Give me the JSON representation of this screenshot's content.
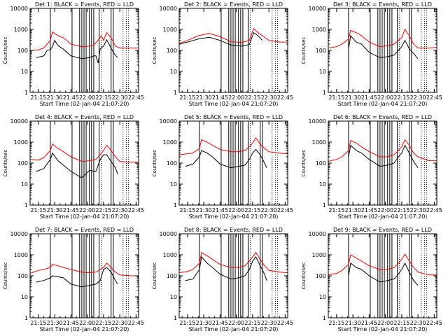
{
  "figure": {
    "xtick_labels": [
      "21:15",
      "21:30",
      "21:45",
      "22:00",
      "22:15",
      "22:30",
      "22:45"
    ],
    "ytick_labels": [
      "1",
      "10",
      "100",
      "1000",
      "10000"
    ],
    "xlabel": "Start Time (02-Jan-04 21:07:20)",
    "ylabel": "Counts/sec",
    "colors": {
      "events": "#000000",
      "lld": "#ff0000",
      "axes": "#000000"
    }
  },
  "chart_data": [
    {
      "type": "line",
      "title": "Det 1: BLACK = Events, RED = LLD",
      "xlabel": "Start Time (02-Jan-04 21:07:20)",
      "ylabel": "Counts/sec",
      "xlim": [
        "21:07:20",
        "22:47:20"
      ],
      "ylim": [
        1,
        10000
      ],
      "yscale": "log",
      "series": [
        {
          "name": "Events",
          "x": [
            "21:13",
            "21:20",
            "21:23",
            "21:26",
            "21:28",
            "21:30",
            "21:33",
            "21:38",
            "21:45",
            "21:55",
            "22:02",
            "22:06",
            "22:08",
            "22:10",
            "22:12",
            "22:15",
            "22:18",
            "22:22",
            "22:24",
            "22:26",
            "22:28"
          ],
          "y": [
            45,
            55,
            100,
            110,
            150,
            300,
            170,
            115,
            55,
            40,
            45,
            55,
            55,
            25,
            120,
            160,
            320,
            130,
            80,
            60,
            45
          ]
        },
        {
          "name": "LLD",
          "x": [
            "21:07",
            "21:15",
            "21:20",
            "21:26",
            "21:28",
            "21:33",
            "21:38",
            "21:45",
            "21:55",
            "22:02",
            "22:06",
            "22:10",
            "22:13",
            "22:15",
            "22:18",
            "22:22",
            "22:26",
            "22:30",
            "22:40",
            "22:47"
          ],
          "y": [
            100,
            105,
            130,
            300,
            750,
            500,
            400,
            200,
            150,
            160,
            180,
            300,
            500,
            300,
            700,
            400,
            160,
            130,
            130,
            130
          ]
        }
      ],
      "vlines_solid": [
        "21:26",
        "21:46",
        "21:53",
        "21:55",
        "21:57",
        "21:59",
        "22:02",
        "22:04",
        "22:06",
        "22:11",
        "22:22",
        "22:24"
      ],
      "vlines_dotted": [
        "22:13",
        "22:33",
        "22:36",
        "22:38"
      ]
    },
    {
      "type": "line",
      "title": "Det 2: BLACK = Events, RED = LLD",
      "xlabel": "Start Time (02-Jan-04 21:07:20)",
      "ylabel": "Counts/sec",
      "xlim": [
        "21:07:20",
        "22:47:20"
      ],
      "ylim": [
        1,
        10000
      ],
      "yscale": "log",
      "series": [
        {
          "name": "Events",
          "x": [
            "21:07",
            "21:15",
            "21:25",
            "21:35",
            "21:45",
            "21:55",
            "22:05",
            "22:12",
            "22:16",
            "22:20",
            "22:24"
          ],
          "y": [
            200,
            250,
            350,
            420,
            300,
            180,
            160,
            190,
            700,
            500,
            300
          ]
        },
        {
          "name": "LLD",
          "x": [
            "21:07",
            "21:15",
            "21:25",
            "21:35",
            "21:45",
            "21:55",
            "22:05",
            "22:12",
            "22:16",
            "22:20",
            "22:24",
            "22:30",
            "22:40",
            "22:47"
          ],
          "y": [
            210,
            300,
            500,
            650,
            450,
            260,
            240,
            300,
            1100,
            700,
            500,
            300,
            250,
            250
          ]
        }
      ],
      "vlines_solid": [
        "21:46",
        "21:53",
        "21:55",
        "21:57",
        "21:59",
        "22:02",
        "22:04",
        "22:06",
        "22:11"
      ],
      "vlines_dotted": [
        "22:13",
        "22:33",
        "22:36",
        "22:38"
      ]
    },
    {
      "type": "line",
      "title": "Det 3: BLACK = Events, RED = LLD",
      "xlabel": "Start Time (02-Jan-04 21:07:20)",
      "ylabel": "Counts/sec",
      "xlim": [
        "21:07:20",
        "22:47:20"
      ],
      "ylim": [
        1,
        10000
      ],
      "yscale": "log",
      "series": [
        {
          "name": "Events",
          "x": [
            "21:26",
            "21:28",
            "21:33",
            "21:38",
            "21:45",
            "21:55",
            "22:02",
            "22:08",
            "22:12",
            "22:15",
            "22:18",
            "22:22",
            "22:26",
            "22:30"
          ],
          "y": [
            120,
            500,
            250,
            200,
            80,
            45,
            50,
            60,
            100,
            150,
            300,
            120,
            70,
            40
          ]
        },
        {
          "name": "LLD",
          "x": [
            "21:07",
            "21:15",
            "21:20",
            "21:26",
            "21:28",
            "21:33",
            "21:38",
            "21:45",
            "21:55",
            "22:02",
            "22:08",
            "22:12",
            "22:15",
            "22:18",
            "22:22",
            "22:26",
            "22:30",
            "22:40",
            "22:47"
          ],
          "y": [
            130,
            150,
            200,
            350,
            900,
            700,
            500,
            250,
            150,
            170,
            200,
            300,
            400,
            1000,
            500,
            200,
            130,
            130,
            140
          ]
        }
      ],
      "vlines_solid": [
        "21:26",
        "21:46",
        "21:53",
        "21:55",
        "21:57",
        "21:59",
        "22:02",
        "22:04",
        "22:06",
        "22:11",
        "22:22",
        "22:24"
      ],
      "vlines_dotted": [
        "22:13",
        "22:33",
        "22:36",
        "22:38"
      ]
    },
    {
      "type": "line",
      "title": "Det 4: BLACK = Events, RED = LLD",
      "xlabel": "Start Time (02-Jan-04 21:07:20)",
      "ylabel": "Counts/sec",
      "xlim": [
        "21:07:20",
        "22:47:20"
      ],
      "ylim": [
        1,
        10000
      ],
      "yscale": "log",
      "series": [
        {
          "name": "Events",
          "x": [
            "21:13",
            "21:20",
            "21:26",
            "21:28",
            "21:33",
            "21:38",
            "21:45",
            "21:55",
            "22:02",
            "22:08",
            "22:12",
            "22:15",
            "22:18",
            "22:22",
            "22:26",
            "22:28"
          ],
          "y": [
            40,
            55,
            150,
            300,
            130,
            80,
            40,
            20,
            45,
            40,
            150,
            250,
            250,
            120,
            60,
            30
          ]
        },
        {
          "name": "LLD",
          "x": [
            "21:07",
            "21:15",
            "21:20",
            "21:26",
            "21:28",
            "21:33",
            "21:38",
            "21:45",
            "21:55",
            "22:02",
            "22:08",
            "22:12",
            "22:15",
            "22:18",
            "22:22",
            "22:26",
            "22:30",
            "22:40",
            "22:47"
          ],
          "y": [
            150,
            140,
            180,
            400,
            800,
            500,
            350,
            200,
            120,
            130,
            150,
            250,
            400,
            700,
            400,
            200,
            120,
            110,
            110
          ]
        }
      ],
      "vlines_solid": [
        "21:26",
        "21:46",
        "21:53",
        "21:55",
        "21:57",
        "21:59",
        "22:02",
        "22:04",
        "22:06",
        "22:11",
        "22:22",
        "22:24"
      ],
      "vlines_dotted": [
        "22:13",
        "22:33",
        "22:36",
        "22:38"
      ]
    },
    {
      "type": "line",
      "title": "Det 5: BLACK = Events, RED = LLD",
      "xlabel": "Start Time (02-Jan-04 21:07:20)",
      "ylabel": "Counts/sec",
      "xlim": [
        "21:07:20",
        "22:47:20"
      ],
      "ylim": [
        1,
        10000
      ],
      "yscale": "log",
      "series": [
        {
          "name": "Events",
          "x": [
            "21:13",
            "21:20",
            "21:26",
            "21:28",
            "21:33",
            "21:38",
            "21:45",
            "21:55",
            "22:02",
            "22:08",
            "22:12",
            "22:15",
            "22:18",
            "22:22",
            "22:26",
            "22:28"
          ],
          "y": [
            70,
            90,
            200,
            400,
            300,
            200,
            90,
            60,
            70,
            80,
            150,
            300,
            450,
            250,
            100,
            60
          ]
        },
        {
          "name": "LLD",
          "x": [
            "21:07",
            "21:15",
            "21:20",
            "21:26",
            "21:28",
            "21:33",
            "21:38",
            "21:45",
            "21:55",
            "22:02",
            "22:08",
            "22:12",
            "22:15",
            "22:18",
            "22:22",
            "22:26",
            "22:30",
            "22:40",
            "22:47"
          ],
          "y": [
            250,
            280,
            300,
            500,
            1300,
            1000,
            700,
            450,
            350,
            350,
            400,
            600,
            900,
            1600,
            800,
            500,
            350,
            300,
            280
          ]
        }
      ],
      "vlines_solid": [
        "21:26",
        "21:46",
        "21:53",
        "21:55",
        "21:57",
        "21:59",
        "22:02",
        "22:04",
        "22:06",
        "22:11",
        "22:22",
        "22:24"
      ],
      "vlines_dotted": [
        "22:13",
        "22:33",
        "22:36",
        "22:38"
      ]
    },
    {
      "type": "line",
      "title": "Det 6: BLACK = Events, RED = LLD",
      "xlabel": "Start Time (02-Jan-04 21:07:20)",
      "ylabel": "Counts/sec",
      "xlim": [
        "21:07:20",
        "22:47:20"
      ],
      "ylim": [
        1,
        10000
      ],
      "yscale": "log",
      "series": [
        {
          "name": "Events",
          "x": [
            "21:26",
            "21:28",
            "21:33",
            "21:38",
            "21:45",
            "21:55",
            "22:02",
            "22:08",
            "22:12",
            "22:15",
            "22:18",
            "22:22",
            "22:26",
            "22:30"
          ],
          "y": [
            200,
            700,
            400,
            300,
            150,
            70,
            80,
            100,
            200,
            300,
            700,
            300,
            120,
            60
          ]
        },
        {
          "name": "LLD",
          "x": [
            "21:07",
            "21:15",
            "21:20",
            "21:26",
            "21:28",
            "21:33",
            "21:38",
            "21:45",
            "21:55",
            "22:02",
            "22:08",
            "22:12",
            "22:15",
            "22:18",
            "22:22",
            "22:26",
            "22:30",
            "22:40",
            "22:47"
          ],
          "y": [
            120,
            150,
            200,
            400,
            1200,
            900,
            600,
            350,
            200,
            200,
            250,
            400,
            600,
            1300,
            700,
            300,
            200,
            130,
            130
          ]
        }
      ],
      "vlines_solid": [
        "21:26",
        "21:46",
        "21:53",
        "21:55",
        "21:57",
        "21:59",
        "22:02",
        "22:04",
        "22:06",
        "22:11",
        "22:22",
        "22:24"
      ],
      "vlines_dotted": [
        "22:13",
        "22:33",
        "22:36",
        "22:38"
      ]
    },
    {
      "type": "line",
      "title": "Det 7: BLACK = Events, RED = LLD",
      "xlabel": "Start Time (02-Jan-04 21:07:20)",
      "ylabel": "Counts/sec",
      "xlim": [
        "21:07:20",
        "22:47:20"
      ],
      "ylim": [
        1,
        10000
      ],
      "yscale": "log",
      "series": [
        {
          "name": "Events",
          "x": [
            "21:13",
            "21:20",
            "21:26",
            "21:28",
            "21:33",
            "21:38",
            "21:45",
            "21:55",
            "22:02",
            "22:08",
            "22:12",
            "22:15",
            "22:18",
            "22:22",
            "22:26",
            "22:28"
          ],
          "y": [
            50,
            60,
            80,
            100,
            90,
            80,
            40,
            30,
            35,
            40,
            60,
            200,
            250,
            150,
            60,
            40
          ]
        },
        {
          "name": "LLD",
          "x": [
            "21:07",
            "21:15",
            "21:20",
            "21:26",
            "21:28",
            "21:33",
            "21:38",
            "21:45",
            "21:55",
            "22:02",
            "22:08",
            "22:12",
            "22:15",
            "22:18",
            "22:22",
            "22:26",
            "22:30",
            "22:40",
            "22:47"
          ],
          "y": [
            130,
            180,
            200,
            250,
            350,
            300,
            250,
            200,
            150,
            140,
            150,
            200,
            250,
            400,
            250,
            150,
            110,
            100,
            100
          ]
        }
      ],
      "vlines_solid": [
        "21:26",
        "21:46",
        "21:53",
        "21:55",
        "21:57",
        "21:59",
        "22:02",
        "22:04",
        "22:06",
        "22:11",
        "22:22",
        "22:24"
      ],
      "vlines_dotted": [
        "22:13",
        "22:33",
        "22:36",
        "22:38"
      ]
    },
    {
      "type": "line",
      "title": "Det 8: BLACK = Events, RED = LLD",
      "xlabel": "Start Time (02-Jan-04 21:07:20)",
      "ylabel": "Counts/sec",
      "xlim": [
        "21:07:20",
        "22:47:20"
      ],
      "ylim": [
        1,
        10000
      ],
      "yscale": "log",
      "series": [
        {
          "name": "Events",
          "x": [
            "21:13",
            "21:20",
            "21:26",
            "21:28",
            "21:33",
            "21:38",
            "21:45",
            "21:55",
            "22:02",
            "22:08",
            "22:12",
            "22:15",
            "22:18",
            "22:22",
            "22:26",
            "22:28"
          ],
          "y": [
            60,
            70,
            200,
            800,
            400,
            250,
            120,
            70,
            80,
            100,
            200,
            500,
            800,
            300,
            120,
            60
          ]
        },
        {
          "name": "LLD",
          "x": [
            "21:07",
            "21:15",
            "21:20",
            "21:26",
            "21:28",
            "21:33",
            "21:38",
            "21:45",
            "21:55",
            "22:02",
            "22:08",
            "22:12",
            "22:15",
            "22:18",
            "22:22",
            "22:26",
            "22:30",
            "22:40",
            "22:47"
          ],
          "y": [
            140,
            160,
            200,
            400,
            1300,
            900,
            600,
            350,
            250,
            250,
            300,
            500,
            800,
            1300,
            600,
            300,
            180,
            150,
            140
          ]
        }
      ],
      "vlines_solid": [
        "21:26",
        "21:46",
        "21:53",
        "21:55",
        "21:57",
        "21:59",
        "22:02",
        "22:04",
        "22:06",
        "22:11",
        "22:22",
        "22:24"
      ],
      "vlines_dotted": [
        "22:13",
        "22:33",
        "22:36",
        "22:38"
      ]
    },
    {
      "type": "line",
      "title": "Det 9: BLACK = Events, RED = LLD",
      "xlabel": "Start Time (02-Jan-04 21:07:20)",
      "ylabel": "Counts/sec",
      "xlim": [
        "21:07:20",
        "22:47:20"
      ],
      "ylim": [
        1,
        10000
      ],
      "yscale": "log",
      "series": [
        {
          "name": "Events",
          "x": [
            "21:26",
            "21:28",
            "21:33",
            "21:38",
            "21:45",
            "21:55",
            "22:02",
            "22:08",
            "22:12",
            "22:15",
            "22:18",
            "22:22",
            "22:26",
            "22:30"
          ],
          "y": [
            100,
            400,
            250,
            200,
            100,
            50,
            60,
            70,
            120,
            200,
            400,
            150,
            60,
            35
          ]
        },
        {
          "name": "LLD",
          "x": [
            "21:07",
            "21:15",
            "21:20",
            "21:26",
            "21:28",
            "21:33",
            "21:38",
            "21:45",
            "21:55",
            "22:02",
            "22:08",
            "22:12",
            "22:15",
            "22:18",
            "22:22",
            "22:26",
            "22:30",
            "22:40",
            "22:47"
          ],
          "y": [
            110,
            130,
            180,
            350,
            1000,
            700,
            500,
            300,
            200,
            200,
            250,
            400,
            600,
            1100,
            500,
            250,
            150,
            110,
            110
          ]
        }
      ],
      "vlines_solid": [
        "21:26",
        "21:46",
        "21:53",
        "21:55",
        "21:57",
        "21:59",
        "22:02",
        "22:04",
        "22:06",
        "22:11",
        "22:22",
        "22:24"
      ],
      "vlines_dotted": [
        "22:13",
        "22:33",
        "22:36",
        "22:38"
      ]
    }
  ]
}
